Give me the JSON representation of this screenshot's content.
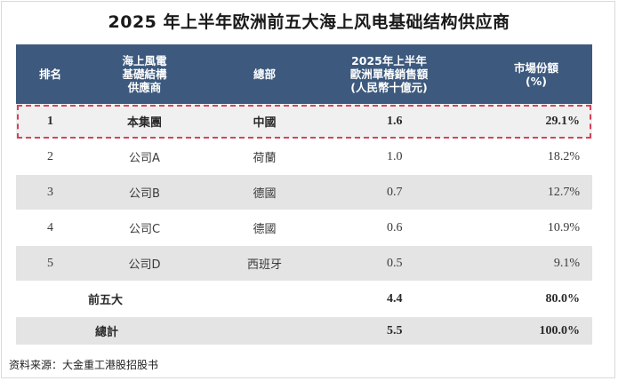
{
  "title": "2025 年上半年欧洲前五大海上风电基础结构供应商",
  "table": {
    "headers": {
      "rank": "排名",
      "supplier": "海上風電\n基礎結構\n供應商",
      "hq": "總部",
      "sales": "2025年上半年\n歐洲單樁銷售額\n(人民幣十億元)",
      "share": "市場份額\n(%)"
    },
    "rows": [
      {
        "rank": "1",
        "supplier": "本集團",
        "hq": "中國",
        "sales": "1.6",
        "share": "29.1%"
      },
      {
        "rank": "2",
        "supplier": "公司A",
        "hq": "荷蘭",
        "sales": "1.0",
        "share": "18.2%"
      },
      {
        "rank": "3",
        "supplier": "公司B",
        "hq": "德國",
        "sales": "0.7",
        "share": "12.7%"
      },
      {
        "rank": "4",
        "supplier": "公司C",
        "hq": "德國",
        "sales": "0.6",
        "share": "10.9%"
      },
      {
        "rank": "5",
        "supplier": "公司D",
        "hq": "西班牙",
        "sales": "0.5",
        "share": "9.1%"
      }
    ],
    "top5": {
      "label": "前五大",
      "sales": "4.4",
      "share": "80.0%"
    },
    "total": {
      "label": "總計",
      "sales": "5.5",
      "share": "100.0%"
    }
  },
  "source": "资料来源：大金重工港股招股书",
  "colors": {
    "header_bg": "#3d5a7e",
    "highlight_border": "#d4435a",
    "stripe": "#e4e4e4"
  }
}
